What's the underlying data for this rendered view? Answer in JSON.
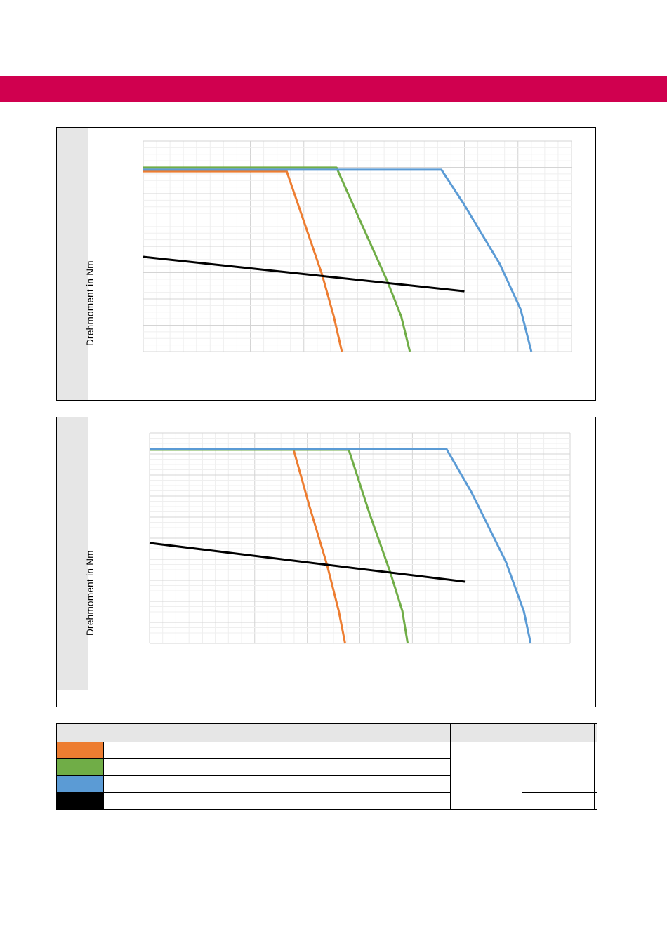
{
  "header": {
    "band_color": "#d0004f"
  },
  "colors": {
    "orange": "#ed7d31",
    "green": "#70ad47",
    "blue": "#5b9bd5",
    "black": "#000000",
    "grid": "#d9d9d9"
  },
  "chart_data": [
    {
      "type": "line",
      "ylabel": "Drehmoment in Nm",
      "xlim": [
        0,
        8
      ],
      "ylim": [
        0,
        8
      ],
      "grid": true,
      "series": [
        {
          "color": "#ed7d31",
          "x": [
            0,
            2.68,
            2.98,
            3.34,
            3.56,
            3.71
          ],
          "y": [
            6.85,
            6.85,
            5.07,
            2.93,
            1.33,
            0
          ]
        },
        {
          "color": "#70ad47",
          "x": [
            0,
            3.61,
            4.03,
            4.56,
            4.82,
            4.98
          ],
          "y": [
            6.99,
            6.99,
            5.07,
            2.67,
            1.33,
            0
          ]
        },
        {
          "color": "#5b9bd5",
          "x": [
            0,
            5.57,
            5.99,
            6.66,
            7.05,
            7.25
          ],
          "y": [
            6.91,
            6.91,
            5.6,
            3.33,
            1.6,
            0
          ]
        },
        {
          "color": "#000000",
          "x": [
            0,
            6.0
          ],
          "y": [
            3.6,
            2.29
          ]
        }
      ]
    },
    {
      "type": "line",
      "ylabel": "Drehmoment in Nm",
      "xlim": [
        0,
        8
      ],
      "ylim": [
        0,
        10
      ],
      "grid": true,
      "series": [
        {
          "color": "#ed7d31",
          "x": [
            0,
            2.74,
            3.04,
            3.38,
            3.6,
            3.72
          ],
          "y": [
            9.2,
            9.2,
            6.53,
            3.7,
            1.53,
            0
          ]
        },
        {
          "color": "#70ad47",
          "x": [
            0,
            3.79,
            4.18,
            4.58,
            4.81,
            4.91
          ],
          "y": [
            9.2,
            9.2,
            6.2,
            3.37,
            1.53,
            0
          ]
        },
        {
          "color": "#5b9bd5",
          "x": [
            0,
            5.65,
            6.12,
            6.78,
            7.12,
            7.25
          ],
          "y": [
            9.23,
            9.23,
            7.2,
            3.87,
            1.53,
            0
          ]
        },
        {
          "color": "#000000",
          "x": [
            0,
            6.01
          ],
          "y": [
            4.77,
            2.93
          ]
        }
      ]
    }
  ],
  "legend_table": {
    "swatches": [
      "#ed7d31",
      "#70ad47",
      "#5b9bd5",
      "#000000"
    ]
  }
}
